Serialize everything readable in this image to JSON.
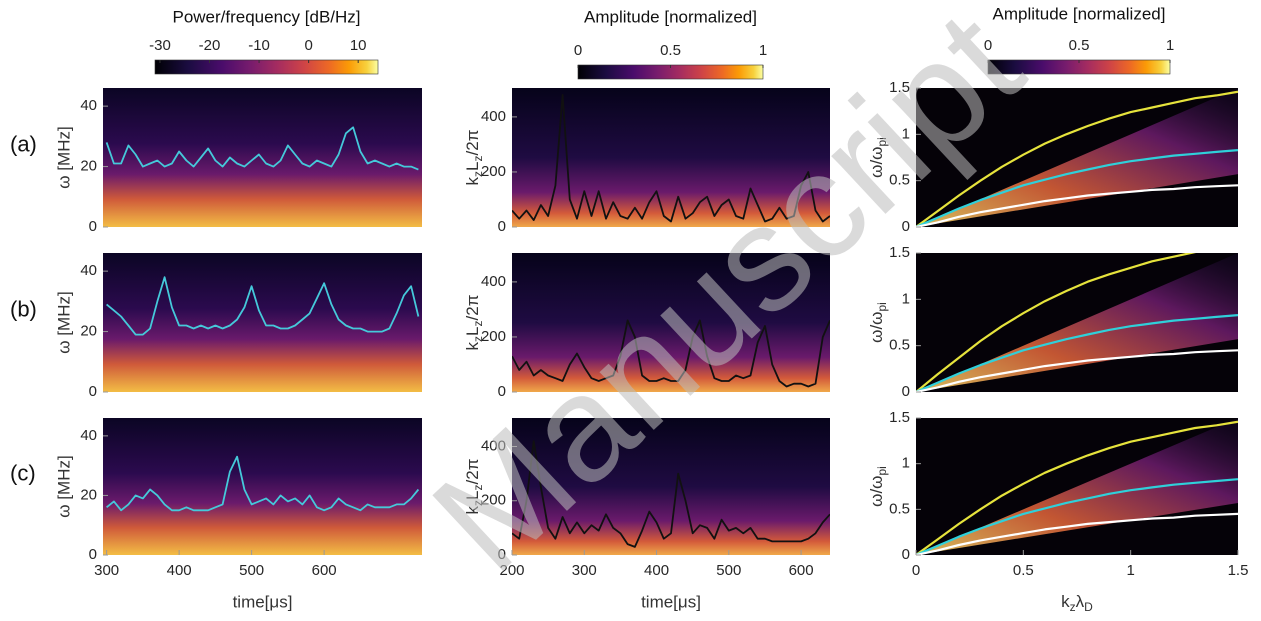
{
  "watermark": "Manuscript",
  "chart_data": [
    {
      "type": "line",
      "panel_label": "(a)",
      "ylabel": "ω [MHz]",
      "xlim": [
        295,
        735
      ],
      "ylim": [
        0,
        46
      ],
      "yticks": [
        0,
        20,
        40
      ],
      "colorbar": {
        "title": "Power/frequency [dB/Hz]",
        "lim": [
          -31,
          14
        ],
        "ticks": [
          -30,
          -20,
          -10,
          0,
          10
        ]
      },
      "x": [
        300,
        310,
        320,
        330,
        340,
        350,
        360,
        370,
        380,
        390,
        400,
        410,
        420,
        430,
        440,
        450,
        460,
        470,
        480,
        490,
        500,
        510,
        520,
        530,
        540,
        550,
        560,
        570,
        580,
        590,
        600,
        610,
        620,
        630,
        640,
        650,
        660,
        670,
        680,
        690,
        700,
        710,
        720,
        730
      ],
      "series": [
        {
          "color": "#45c9da",
          "values": [
            28,
            21,
            21,
            27,
            24,
            20,
            21,
            22,
            20,
            21,
            25,
            22,
            20,
            23,
            26,
            22,
            20,
            23,
            21,
            20,
            22,
            24,
            21,
            20,
            22,
            27,
            24,
            21,
            20,
            22,
            21,
            20,
            24,
            31,
            33,
            25,
            21,
            22,
            21,
            20,
            21,
            20,
            20,
            19
          ]
        }
      ]
    },
    {
      "type": "line",
      "panel_label": "(b)",
      "ylabel": "ω [MHz]",
      "xlim": [
        295,
        735
      ],
      "ylim": [
        0,
        46
      ],
      "yticks": [
        0,
        20,
        40
      ],
      "x": [
        300,
        310,
        320,
        330,
        340,
        350,
        360,
        370,
        380,
        390,
        400,
        410,
        420,
        430,
        440,
        450,
        460,
        470,
        480,
        490,
        500,
        510,
        520,
        530,
        540,
        550,
        560,
        570,
        580,
        590,
        600,
        610,
        620,
        630,
        640,
        650,
        660,
        670,
        680,
        690,
        700,
        710,
        720,
        730
      ],
      "series": [
        {
          "color": "#45c9da",
          "values": [
            29,
            27,
            25,
            22,
            19,
            19,
            21,
            30,
            38,
            28,
            22,
            22,
            21,
            22,
            21,
            22,
            21,
            22,
            24,
            28,
            35,
            27,
            22,
            22,
            21,
            21,
            22,
            24,
            26,
            31,
            36,
            29,
            24,
            22,
            21,
            21,
            20,
            20,
            20,
            21,
            26,
            32,
            35,
            25
          ]
        }
      ]
    },
    {
      "type": "line",
      "panel_label": "(c)",
      "ylabel": "ω [MHz]",
      "xlabel": "time[μs]",
      "xlim": [
        295,
        735
      ],
      "ylim": [
        0,
        46
      ],
      "yticks": [
        0,
        20,
        40
      ],
      "xticks": [
        300,
        400,
        500,
        600
      ],
      "x": [
        300,
        310,
        320,
        330,
        340,
        350,
        360,
        370,
        380,
        390,
        400,
        410,
        420,
        430,
        440,
        450,
        460,
        470,
        480,
        490,
        500,
        510,
        520,
        530,
        540,
        550,
        560,
        570,
        580,
        590,
        600,
        610,
        620,
        630,
        640,
        650,
        660,
        670,
        680,
        690,
        700,
        710,
        720,
        730
      ],
      "series": [
        {
          "color": "#45c9da",
          "values": [
            16,
            18,
            15,
            17,
            20,
            19,
            22,
            20,
            17,
            15,
            15,
            16,
            15,
            15,
            15,
            16,
            17,
            28,
            33,
            22,
            17,
            18,
            19,
            17,
            20,
            18,
            19,
            17,
            20,
            16,
            15,
            16,
            19,
            17,
            16,
            15,
            17,
            16,
            16,
            16,
            17,
            17,
            19,
            22
          ]
        }
      ]
    },
    {
      "type": "line",
      "ylabel": [
        "k",
        "z",
        "L",
        "z",
        "/2π"
      ],
      "xlim": [
        200,
        640
      ],
      "ylim": [
        0,
        505
      ],
      "yticks": [
        0,
        200,
        400
      ],
      "colorbar": {
        "title": "Amplitude [normalized]",
        "lim": [
          0,
          1
        ],
        "ticks": [
          0,
          0.5,
          1
        ]
      },
      "x": [
        200,
        210,
        220,
        230,
        240,
        250,
        260,
        270,
        280,
        290,
        300,
        310,
        320,
        330,
        340,
        350,
        360,
        370,
        380,
        390,
        400,
        410,
        420,
        430,
        440,
        450,
        460,
        470,
        480,
        490,
        500,
        510,
        520,
        530,
        540,
        550,
        560,
        570,
        580,
        590,
        600,
        610,
        620,
        630,
        640
      ],
      "series": [
        {
          "color": "#111111",
          "values": [
            60,
            30,
            60,
            25,
            80,
            40,
            150,
            480,
            100,
            30,
            130,
            40,
            130,
            30,
            90,
            40,
            30,
            70,
            30,
            90,
            130,
            40,
            20,
            110,
            30,
            50,
            90,
            110,
            40,
            80,
            100,
            40,
            30,
            140,
            80,
            20,
            30,
            70,
            30,
            40,
            150,
            200,
            60,
            20,
            40
          ]
        }
      ]
    },
    {
      "type": "line",
      "ylabel": [
        "k",
        "z",
        "L",
        "z",
        "/2π"
      ],
      "xlim": [
        200,
        640
      ],
      "ylim": [
        0,
        505
      ],
      "yticks": [
        0,
        200,
        400
      ],
      "x": [
        200,
        210,
        220,
        230,
        240,
        250,
        260,
        270,
        280,
        290,
        300,
        310,
        320,
        330,
        340,
        350,
        360,
        370,
        380,
        390,
        400,
        410,
        420,
        430,
        440,
        450,
        460,
        470,
        480,
        490,
        500,
        510,
        520,
        530,
        540,
        550,
        560,
        570,
        580,
        590,
        600,
        610,
        620,
        630,
        640
      ],
      "series": [
        {
          "color": "#111111",
          "values": [
            130,
            80,
            110,
            60,
            80,
            60,
            50,
            40,
            100,
            140,
            90,
            50,
            40,
            50,
            60,
            130,
            260,
            200,
            60,
            40,
            40,
            50,
            40,
            40,
            80,
            200,
            260,
            130,
            50,
            40,
            40,
            60,
            50,
            60,
            180,
            240,
            100,
            40,
            20,
            30,
            30,
            20,
            30,
            200,
            260
          ]
        }
      ]
    },
    {
      "type": "line",
      "ylabel": [
        "k",
        "z",
        "L",
        "z",
        "/2π"
      ],
      "xlabel": "time[μs]",
      "xlim": [
        200,
        640
      ],
      "ylim": [
        0,
        505
      ],
      "yticks": [
        0,
        200,
        400
      ],
      "xticks": [
        200,
        300,
        400,
        500,
        600
      ],
      "x": [
        200,
        210,
        220,
        230,
        240,
        250,
        260,
        270,
        280,
        290,
        300,
        310,
        320,
        330,
        340,
        350,
        360,
        370,
        380,
        390,
        400,
        410,
        420,
        430,
        440,
        450,
        460,
        470,
        480,
        490,
        500,
        510,
        520,
        530,
        540,
        550,
        560,
        570,
        580,
        590,
        600,
        610,
        620,
        630,
        640
      ],
      "series": [
        {
          "color": "#111111",
          "values": [
            80,
            60,
            200,
            420,
            250,
            100,
            60,
            140,
            80,
            120,
            80,
            110,
            90,
            150,
            100,
            80,
            40,
            30,
            90,
            160,
            120,
            60,
            80,
            300,
            200,
            80,
            110,
            100,
            60,
            130,
            90,
            100,
            80,
            100,
            60,
            60,
            50,
            50,
            50,
            50,
            50,
            60,
            80,
            120,
            150
          ]
        }
      ]
    },
    {
      "type": "line",
      "ylabel": [
        "ω/ω",
        "pi"
      ],
      "xlim": [
        0,
        1.5
      ],
      "ylim": [
        0,
        1.5
      ],
      "yticks": [
        0,
        0.5,
        1,
        1.5
      ],
      "colorbar": {
        "title": "Amplitude [normalized]",
        "lim": [
          0,
          1
        ],
        "ticks": [
          0,
          0.5,
          1
        ]
      },
      "x": [
        0,
        0.1,
        0.2,
        0.3,
        0.4,
        0.5,
        0.6,
        0.7,
        0.8,
        0.9,
        1,
        1.1,
        1.2,
        1.3,
        1.4,
        1.5
      ],
      "series": [
        {
          "color": "#e6e33c",
          "values": [
            0,
            0.17,
            0.34,
            0.5,
            0.65,
            0.78,
            0.9,
            1,
            1.09,
            1.17,
            1.24,
            1.29,
            1.34,
            1.39,
            1.42,
            1.46
          ]
        },
        {
          "color": "#2fd0da",
          "values": [
            0,
            0.1,
            0.2,
            0.29,
            0.37,
            0.45,
            0.51,
            0.57,
            0.62,
            0.67,
            0.71,
            0.74,
            0.77,
            0.79,
            0.81,
            0.83
          ]
        },
        {
          "color": "#ffffff",
          "values": [
            0,
            0.05,
            0.11,
            0.16,
            0.2,
            0.24,
            0.28,
            0.31,
            0.34,
            0.36,
            0.38,
            0.4,
            0.41,
            0.43,
            0.44,
            0.45
          ]
        }
      ]
    },
    {
      "type": "line",
      "ylabel": [
        "ω/ω",
        "pi"
      ],
      "xlim": [
        0,
        1.5
      ],
      "ylim": [
        0,
        1.5
      ],
      "yticks": [
        0,
        0.5,
        1,
        1.5
      ],
      "x": [
        0,
        0.1,
        0.2,
        0.3,
        0.4,
        0.5,
        0.6,
        0.7,
        0.8,
        0.9,
        1,
        1.1,
        1.2,
        1.3,
        1.4,
        1.5
      ],
      "series": [
        {
          "color": "#e6e33c",
          "values": [
            0,
            0.19,
            0.37,
            0.55,
            0.71,
            0.85,
            0.98,
            1.09,
            1.19,
            1.27,
            1.34,
            1.41,
            1.46,
            1.51,
            1.55,
            1.58
          ]
        },
        {
          "color": "#2fd0da",
          "values": [
            0,
            0.1,
            0.2,
            0.29,
            0.37,
            0.45,
            0.51,
            0.57,
            0.62,
            0.67,
            0.71,
            0.74,
            0.77,
            0.79,
            0.81,
            0.83
          ]
        },
        {
          "color": "#ffffff",
          "values": [
            0,
            0.05,
            0.11,
            0.16,
            0.2,
            0.24,
            0.28,
            0.31,
            0.34,
            0.36,
            0.38,
            0.4,
            0.41,
            0.43,
            0.44,
            0.45
          ]
        }
      ]
    },
    {
      "type": "line",
      "ylabel": [
        "ω/ω",
        "pi"
      ],
      "xlabel": [
        "k",
        "z",
        "λ",
        "D"
      ],
      "xlim": [
        0,
        1.5
      ],
      "ylim": [
        0,
        1.5
      ],
      "yticks": [
        0,
        0.5,
        1,
        1.5
      ],
      "xticks": [
        0,
        0.5,
        1,
        1.5
      ],
      "x": [
        0,
        0.1,
        0.2,
        0.3,
        0.4,
        0.5,
        0.6,
        0.7,
        0.8,
        0.9,
        1,
        1.1,
        1.2,
        1.3,
        1.4,
        1.5
      ],
      "series": [
        {
          "color": "#e6e33c",
          "values": [
            0,
            0.17,
            0.34,
            0.5,
            0.65,
            0.78,
            0.9,
            1,
            1.09,
            1.17,
            1.24,
            1.29,
            1.34,
            1.39,
            1.42,
            1.46
          ]
        },
        {
          "color": "#2fd0da",
          "values": [
            0,
            0.1,
            0.2,
            0.29,
            0.37,
            0.45,
            0.51,
            0.57,
            0.62,
            0.67,
            0.71,
            0.74,
            0.77,
            0.79,
            0.81,
            0.83
          ]
        },
        {
          "color": "#ffffff",
          "values": [
            0,
            0.05,
            0.11,
            0.16,
            0.2,
            0.24,
            0.28,
            0.31,
            0.34,
            0.36,
            0.38,
            0.4,
            0.41,
            0.43,
            0.44,
            0.45
          ]
        }
      ]
    }
  ]
}
